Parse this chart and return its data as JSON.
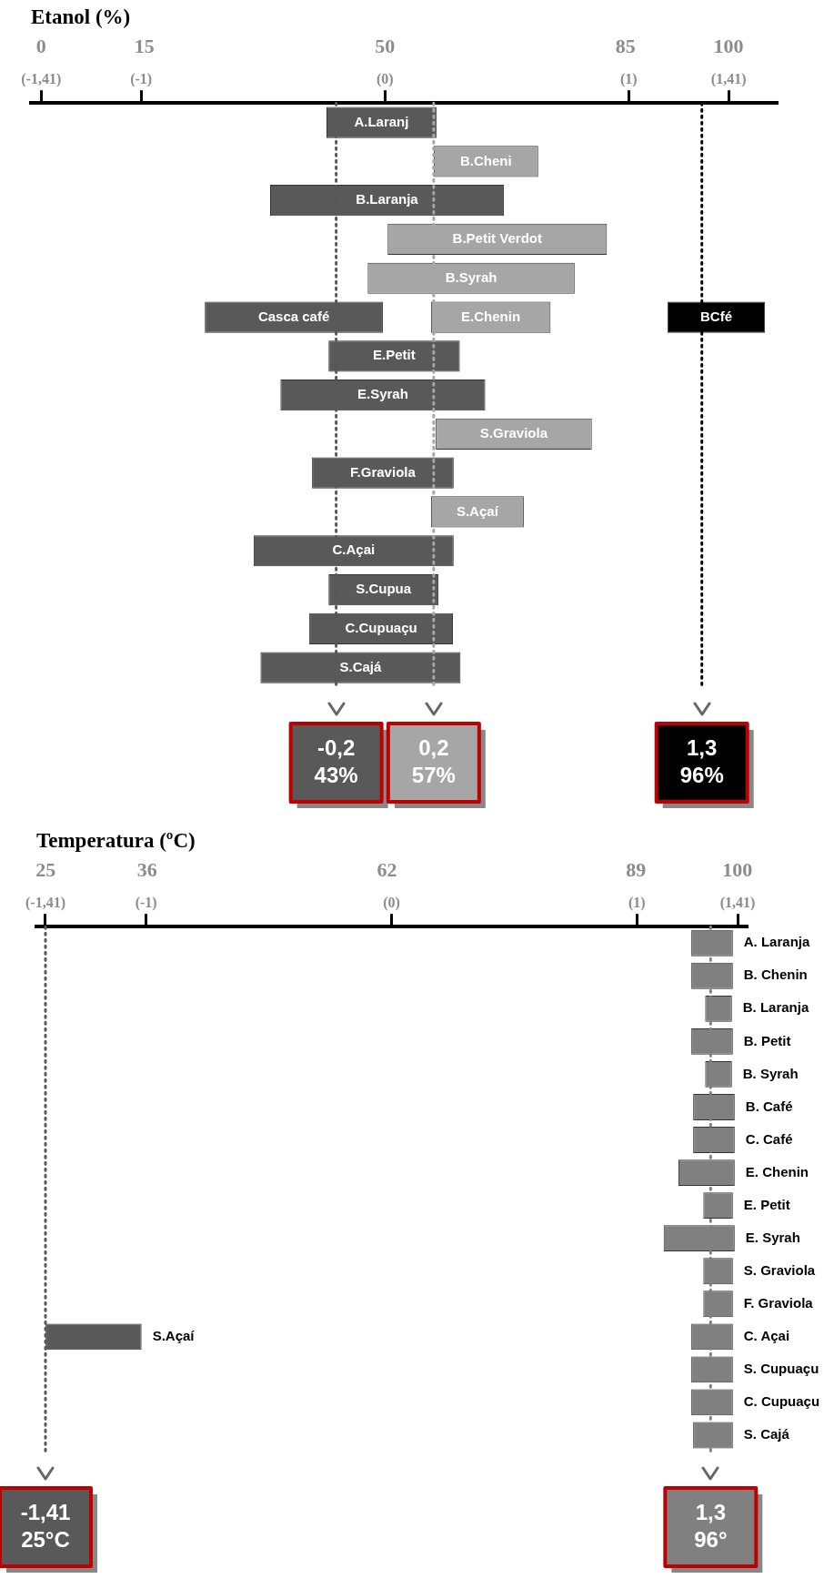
{
  "chart_data": [
    {
      "type": "bar",
      "orientation": "horizontal",
      "title": "Etanol (%)",
      "tick_labels": "x",
      "categories": [
        null,
        null,
        null,
        null,
        null,
        null,
        null,
        null,
        null,
        null,
        null,
        null,
        null,
        null,
        null
      ],
      "xlim": [
        -1.5,
        107
      ],
      "xticks": [
        0,
        15,
        50,
        85,
        100
      ],
      "x2lim": [
        -1.452,
        1.607
      ],
      "x2ticks": [
        {
          "value": -1.41,
          "label": "(-1,41)"
        },
        {
          "value": -1,
          "label": "(-1)"
        },
        {
          "value": 0,
          "label": "(0)"
        },
        {
          "value": 1,
          "label": "(1)"
        },
        {
          "value": 1.41,
          "label": "(1,41)"
        }
      ],
      "series": [
        {
          "color": "#595959",
          "base": [
            41.5,
            null,
            33.3,
            null,
            null,
            23.8,
            41.8,
            34.8,
            null,
            39.4,
            null,
            30.9,
            41.8,
            39.0,
            31.9
          ],
          "values": [
            16.0,
            null,
            34.0,
            null,
            null,
            25.9,
            19.1,
            29.8,
            null,
            20.6,
            null,
            29.1,
            16.0,
            20.9,
            29.1
          ],
          "value_labels": [
            "A.Laranj",
            null,
            "B.Laranja",
            null,
            null,
            "Casca café",
            "E.Petit",
            "E.Syrah",
            null,
            "F.Graviola",
            null,
            "C.Açai",
            "S.Cupua",
            "C.Cupuaçu",
            "S.Cajá"
          ]
        },
        {
          "color": "#a6a6a6",
          "base": [
            null,
            57.1,
            null,
            50.4,
            47.5,
            56.7,
            null,
            null,
            57.4,
            null,
            56.7,
            null,
            null,
            null,
            null
          ],
          "values": [
            null,
            15.2,
            null,
            31.9,
            30.1,
            17.4,
            null,
            null,
            22.7,
            null,
            13.5,
            null,
            null,
            null,
            null
          ],
          "value_labels": [
            null,
            "B.Cheni",
            null,
            "B.Petit Verdot",
            "B.Syrah",
            "E.Chenin",
            null,
            null,
            "S.Graviola",
            null,
            "S.Açaí",
            null,
            null,
            null,
            null
          ]
        },
        {
          "color": "#000000",
          "base": [
            null,
            null,
            null,
            null,
            null,
            91.1,
            null,
            null,
            null,
            null,
            null,
            null,
            null,
            null,
            null
          ],
          "values": [
            null,
            null,
            null,
            null,
            null,
            14.2,
            null,
            null,
            null,
            null,
            null,
            null,
            null,
            null,
            null
          ],
          "value_labels": [
            null,
            null,
            null,
            null,
            null,
            "BCfé",
            null,
            null,
            null,
            null,
            null,
            null,
            null,
            null,
            null
          ]
        }
      ],
      "ref_lines": [
        {
          "axis": "x2",
          "value": -0.2,
          "label": "-0,2\n43%",
          "color": "#595959",
          "line_style": "dotted"
        },
        {
          "axis": "x2",
          "value": 0.2,
          "label": "0,2\n57%",
          "color": "#a6a6a6",
          "line_style": "dotted"
        },
        {
          "axis": "x2",
          "value": 1.3,
          "label": "1,3\n96%",
          "color": "#000000",
          "line_style": "dotted"
        }
      ]
    },
    {
      "type": "bar",
      "orientation": "horizontal",
      "title": "Temperatura (ºC)",
      "tick_labels": "x",
      "categories": [
        null,
        null,
        null,
        null,
        null,
        null,
        null,
        null,
        null,
        null,
        null,
        null,
        null,
        null,
        null,
        null
      ],
      "xlim": [
        24,
        101
      ],
      "xticks": [
        25,
        36,
        62,
        89,
        100
      ],
      "x2lim": [
        -1.447,
        1.447
      ],
      "x2ticks": [
        {
          "value": -1.41,
          "label": "(-1,41)"
        },
        {
          "value": -1,
          "label": "(-1)"
        },
        {
          "value": 0,
          "label": "(0)"
        },
        {
          "value": 1,
          "label": "(1)"
        },
        {
          "value": 1.41,
          "label": "(1,41)"
        }
      ],
      "series": [
        {
          "color": "#808080",
          "base": [
            95.0,
            95.0,
            96.5,
            95.0,
            96.5,
            95.2,
            95.2,
            93.6,
            96.3,
            92.0,
            96.3,
            96.3,
            95.0,
            95.0,
            95.0,
            95.2
          ],
          "values": [
            4.5,
            4.5,
            2.9,
            4.5,
            2.9,
            4.5,
            4.5,
            6.1,
            3.2,
            7.7,
            3.2,
            3.2,
            4.5,
            4.5,
            4.5,
            4.3
          ],
          "value_labels": [
            "A. Laranja",
            "B. Chenin",
            "B. Laranja",
            "B. Petit",
            "B. Syrah",
            "B. Café",
            "C. Café",
            "E. Chenin",
            "E. Petit",
            "E. Syrah",
            "S. Graviola",
            "F. Graviola",
            "C. Açai",
            "S. Cupuaçu",
            "C. Cupuaçu",
            "S. Cajá"
          ]
        },
        {
          "color": "#595959",
          "base": [
            null,
            null,
            null,
            null,
            null,
            null,
            null,
            null,
            null,
            null,
            null,
            null,
            25.0,
            null,
            null,
            null
          ],
          "values": [
            null,
            null,
            null,
            null,
            null,
            null,
            null,
            null,
            null,
            null,
            null,
            null,
            10.4,
            null,
            null,
            null
          ],
          "value_labels": [
            null,
            null,
            null,
            null,
            null,
            null,
            null,
            null,
            null,
            null,
            null,
            null,
            "S.Açaí",
            null,
            null,
            null
          ]
        }
      ],
      "ref_lines": [
        {
          "axis": "x2",
          "value": -1.41,
          "label": "-1,41\n25°C",
          "color": "#595959",
          "line_style": "dotted"
        },
        {
          "axis": "x2",
          "value": 1.3,
          "label": "1,3\n96°",
          "color": "#808080",
          "line_style": "dotted"
        }
      ]
    }
  ]
}
